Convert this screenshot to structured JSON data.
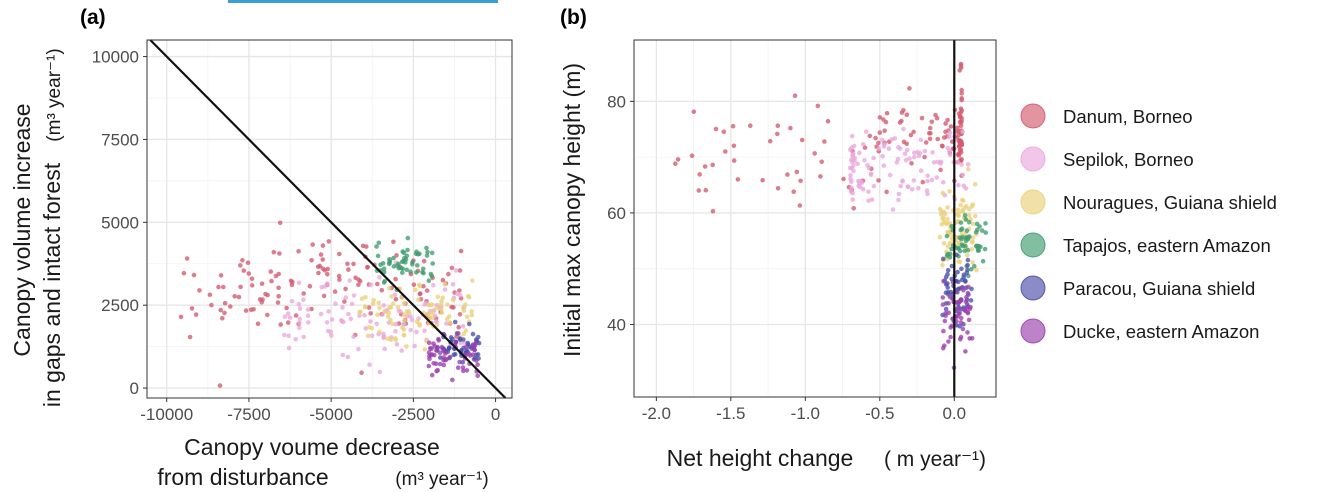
{
  "figure": {
    "panel_a_label": "(a)",
    "panel_b_label": "(b)"
  },
  "colors": {
    "Danum, Borneo": "#d35a6f",
    "Sepilok, Borneo": "#e9a8dc",
    "Nouragues, Guiana shield": "#ead17a",
    "Tapajos, eastern Amazon": "#3f9c6e",
    "Paracou, Guiana shield": "#4a4fa8",
    "Ducke, eastern Amazon": "#9b3fae"
  },
  "chart_data": [
    {
      "id": "a",
      "type": "scatter",
      "xlabel_line1": "Canopy voume decrease",
      "xlabel_line2": "from disturbance",
      "xlabel_unit": "(m³ year⁻¹)",
      "ylabel_line1": "Canopy volume increase",
      "ylabel_line2": "in gaps and intact forest",
      "ylabel_unit": "(m³ year⁻¹)",
      "xlim": [
        -10600,
        500
      ],
      "ylim": [
        -300,
        10500
      ],
      "xticks": [
        -10000,
        -7500,
        -5000,
        -2500,
        0
      ],
      "xtick_labels": [
        "-10000",
        "-7500",
        "-5000",
        "-2500",
        "0"
      ],
      "yticks": [
        0,
        2500,
        5000,
        7500,
        10000
      ],
      "ytick_labels": [
        "0",
        "2500",
        "5000",
        "7500",
        "10000"
      ],
      "reference_line": "y = -x",
      "series": [
        {
          "name": "Danum, Borneo",
          "n": 150,
          "x_range": [
            -9800,
            -1000
          ],
          "y_center_fn": "flat",
          "y_mean": 3000,
          "y_sd": 650
        },
        {
          "name": "Sepilok, Borneo",
          "n": 110,
          "x_range": [
            -6500,
            -900
          ],
          "y_mean": 2100,
          "y_sd": 600
        },
        {
          "name": "Nouragues, Guiana shield",
          "n": 90,
          "x_range": [
            -4200,
            -700
          ],
          "y_mean": 2300,
          "y_sd": 450
        },
        {
          "name": "Tapajos, eastern Amazon",
          "n": 55,
          "x_range": [
            -3800,
            -1900
          ],
          "y_mean": 3700,
          "y_sd": 350
        },
        {
          "name": "Paracou, Guiana shield",
          "n": 60,
          "x_range": [
            -1800,
            -500
          ],
          "y_mean": 1300,
          "y_sd": 250
        },
        {
          "name": "Ducke, eastern Amazon",
          "n": 60,
          "x_range": [
            -2200,
            -500
          ],
          "y_mean": 1000,
          "y_sd": 300
        }
      ]
    },
    {
      "id": "b",
      "type": "scatter",
      "xlabel": "Net height change",
      "xlabel_unit": "( m year⁻¹)",
      "ylabel": "Initial max canopy height (m)",
      "xlim": [
        -2.15,
        0.28
      ],
      "ylim": [
        27,
        91
      ],
      "xticks": [
        -2.0,
        -1.5,
        -1.0,
        -0.5,
        0.0
      ],
      "xtick_labels": [
        "-2.0",
        "-1.5",
        "-1.0",
        "-0.5",
        "0.0"
      ],
      "yticks": [
        40,
        60,
        80
      ],
      "ytick_labels": [
        "40",
        "60",
        "80"
      ],
      "reference_line": "x = 0",
      "series": [
        {
          "name": "Danum, Borneo",
          "n": 150,
          "x_range": [
            -2.05,
            0.05
          ],
          "y_mean": 74,
          "y_sd": 4.5
        },
        {
          "name": "Sepilok, Borneo",
          "n": 110,
          "x_range": [
            -0.7,
            0.15
          ],
          "y_mean": 68,
          "y_sd": 3.5
        },
        {
          "name": "Nouragues, Guiana shield",
          "n": 90,
          "x_range": [
            -0.1,
            0.15
          ],
          "y_mean": 57,
          "y_sd": 3.5
        },
        {
          "name": "Tapajos, eastern Amazon",
          "n": 55,
          "x_range": [
            -0.05,
            0.22
          ],
          "y_mean": 55,
          "y_sd": 3
        },
        {
          "name": "Paracou, Guiana shield",
          "n": 60,
          "x_range": [
            -0.08,
            0.12
          ],
          "y_mean": 46,
          "y_sd": 3
        },
        {
          "name": "Ducke, eastern Amazon",
          "n": 60,
          "x_range": [
            -0.08,
            0.12
          ],
          "y_mean": 42,
          "y_sd": 3.5
        }
      ]
    }
  ],
  "legend": {
    "placement": "right",
    "items": [
      "Danum, Borneo",
      "Sepilok, Borneo",
      "Nouragues, Guiana shield",
      "Tapajos, eastern Amazon",
      "Paracou, Guiana shield",
      "Ducke, eastern Amazon"
    ]
  }
}
